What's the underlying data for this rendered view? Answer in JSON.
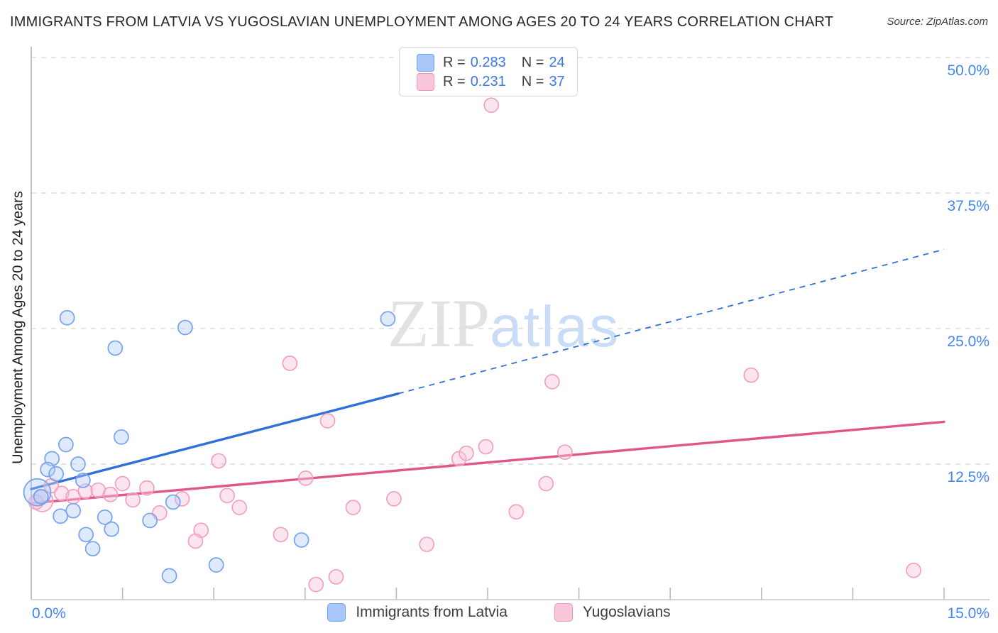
{
  "title": "IMMIGRANTS FROM LATVIA VS YUGOSLAVIAN UNEMPLOYMENT AMONG AGES 20 TO 24 YEARS CORRELATION CHART",
  "source": "Source: ZipAtlas.com",
  "watermark": {
    "zip": "ZIP",
    "atlas": "atlas"
  },
  "y_axis_title": "Unemployment Among Ages 20 to 24 years",
  "legend_box": {
    "rows": [
      {
        "series": "Immigrants from Latvia",
        "r_label": "R =",
        "r_value": "0.283",
        "n_label": "N =",
        "n_value": "24"
      },
      {
        "series": "Yugoslavians",
        "r_label": "R =",
        "r_value": "0.231",
        "n_label": "N =",
        "n_value": "37"
      }
    ]
  },
  "bottom_legend": [
    {
      "label": "Immigrants from Latvia",
      "color": "blue"
    },
    {
      "label": "Yugoslavians",
      "color": "pink"
    }
  ],
  "axes": {
    "x": {
      "min": 0,
      "max": 15,
      "left_label": "0.0%",
      "right_label": "15.0%",
      "ticks_pct": [
        1.5,
        3,
        4.5,
        6,
        7.5,
        9,
        10.5,
        12,
        13.5,
        15
      ]
    },
    "y": {
      "min": 0,
      "max": 50,
      "gridlines": [
        {
          "value": 50.0,
          "label": "50.0%"
        },
        {
          "value": 37.5,
          "label": "37.5%"
        },
        {
          "value": 25.0,
          "label": "25.0%"
        },
        {
          "value": 12.5,
          "label": "12.5%"
        }
      ]
    }
  },
  "chart_data": {
    "type": "scatter",
    "title": "Immigrants from Latvia vs Yugoslavian Unemployment Among Ages 20 to 24 years",
    "xlabel": "Immigrants from Latvia (%)",
    "ylabel": "Unemployment Among Ages 20 to 24 years",
    "xlim": [
      0,
      15
    ],
    "ylim": [
      0,
      50
    ],
    "grid": "horizontal-dashed",
    "legend_position": "bottom-center",
    "series": [
      {
        "name": "Immigrants from Latvia",
        "R": 0.283,
        "N": 24,
        "stroke": "#74a2f0",
        "fill": "rgba(174,203,250,0.40)",
        "points": [
          [
            0.59,
            26.0
          ],
          [
            1.38,
            23.2
          ],
          [
            2.53,
            25.1
          ],
          [
            5.86,
            25.9
          ],
          [
            1.48,
            15.0
          ],
          [
            0.57,
            14.3
          ],
          [
            0.34,
            13.0
          ],
          [
            0.77,
            12.5
          ],
          [
            0.27,
            12.0
          ],
          [
            0.41,
            11.6
          ],
          [
            0.85,
            11.0
          ],
          [
            0.1,
            9.9,
            19
          ],
          [
            0.16,
            9.5
          ],
          [
            0.69,
            8.2
          ],
          [
            0.48,
            7.7
          ],
          [
            1.21,
            7.6
          ],
          [
            1.95,
            7.3
          ],
          [
            1.32,
            6.5
          ],
          [
            0.9,
            6.0
          ],
          [
            1.01,
            4.7
          ],
          [
            4.44,
            5.5
          ],
          [
            3.04,
            3.2
          ],
          [
            2.27,
            2.2
          ],
          [
            2.33,
            9.0
          ]
        ]
      },
      {
        "name": "Yugoslavians",
        "R": 0.231,
        "N": 37,
        "stroke": "#f2a0c0",
        "fill": "rgba(249,198,218,0.45)",
        "points": [
          [
            0.33,
            10.5
          ],
          [
            0.5,
            9.8
          ],
          [
            0.69,
            9.5
          ],
          [
            0.89,
            10.0
          ],
          [
            1.1,
            10.1
          ],
          [
            1.3,
            9.7
          ],
          [
            1.5,
            10.7
          ],
          [
            1.67,
            9.2
          ],
          [
            1.9,
            10.3
          ],
          [
            2.11,
            8.0
          ],
          [
            2.48,
            9.3
          ],
          [
            3.08,
            12.8
          ],
          [
            3.22,
            9.6
          ],
          [
            3.42,
            8.5
          ],
          [
            2.79,
            6.4
          ],
          [
            2.7,
            5.4
          ],
          [
            4.25,
            21.8
          ],
          [
            4.87,
            16.5
          ],
          [
            4.51,
            11.2
          ],
          [
            5.29,
            8.5
          ],
          [
            5.96,
            9.3
          ],
          [
            4.1,
            6.0
          ],
          [
            6.5,
            5.1
          ],
          [
            4.68,
            1.4
          ],
          [
            5.01,
            2.1
          ],
          [
            7.03,
            13.0
          ],
          [
            7.15,
            13.5
          ],
          [
            7.47,
            14.1
          ],
          [
            8.77,
            13.6
          ],
          [
            8.46,
            10.7
          ],
          [
            7.97,
            8.1
          ],
          [
            14.5,
            2.7
          ],
          [
            7.56,
            45.6
          ],
          [
            8.56,
            20.1
          ],
          [
            11.83,
            20.7
          ],
          [
            0.18,
            9.1,
            15
          ],
          [
            0.08,
            9.0
          ]
        ]
      }
    ],
    "trend_lines": [
      {
        "series": "Immigrants from Latvia",
        "color": "#2e6fd8",
        "solid": {
          "x0": 0,
          "y0": 10.2,
          "x1": 6.03,
          "y1": 19.0
        },
        "dashed": {
          "x0": 6.03,
          "y0": 19.0,
          "x1": 15.0,
          "y1": 32.3
        }
      },
      {
        "series": "Yugoslavians",
        "color": "#e0558c",
        "solid": {
          "x0": 0,
          "y0": 8.9,
          "x1": 15.0,
          "y1": 16.4
        }
      }
    ]
  }
}
